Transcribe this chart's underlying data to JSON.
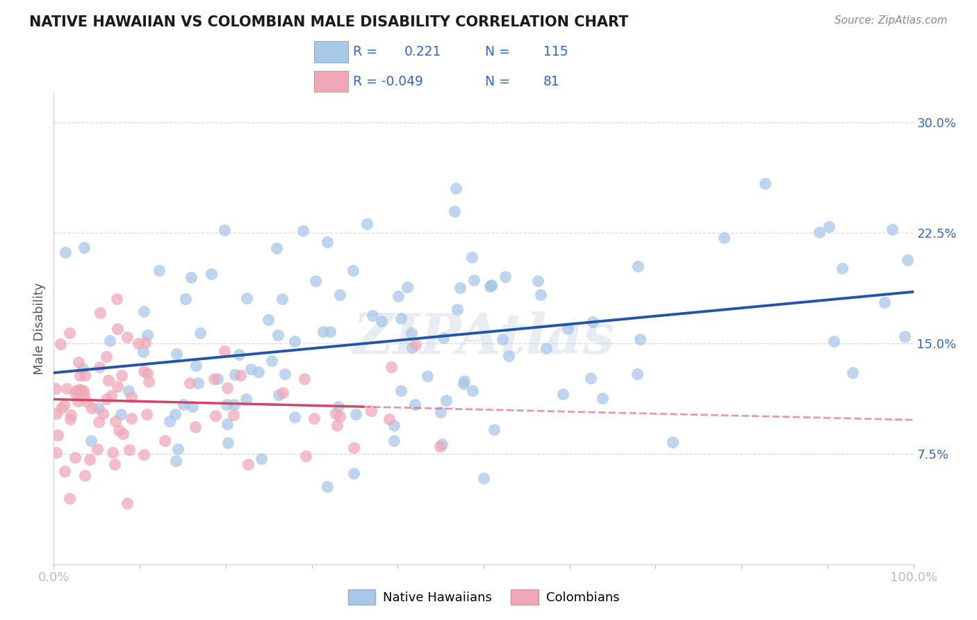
{
  "title": "NATIVE HAWAIIAN VS COLOMBIAN MALE DISABILITY CORRELATION CHART",
  "source": "Source: ZipAtlas.com",
  "ylabel": "Male Disability",
  "xlim": [
    0.0,
    1.0
  ],
  "ylim": [
    0.0,
    0.32
  ],
  "ytick_positions": [
    0.075,
    0.15,
    0.225,
    0.3
  ],
  "ytick_labels": [
    "7.5%",
    "15.0%",
    "22.5%",
    "30.0%"
  ],
  "hawaiian_R": 0.221,
  "hawaiian_N": 115,
  "colombian_R": -0.049,
  "colombian_N": 81,
  "hawaiian_color": "#a8c8e8",
  "colombian_color": "#f0a8b8",
  "hawaiian_line_color": "#2255aa",
  "colombian_line_color": "#d04468",
  "watermark": "ZIPAtlas",
  "accent_color": "#3366cc",
  "background_color": "#ffffff",
  "legend_entries": [
    "Native Hawaiians",
    "Colombians"
  ],
  "hw_line_start_y": 0.13,
  "hw_line_end_y": 0.185,
  "co_line_start_y": 0.112,
  "co_line_solid_end_x": 0.36,
  "co_line_end_y": 0.098
}
